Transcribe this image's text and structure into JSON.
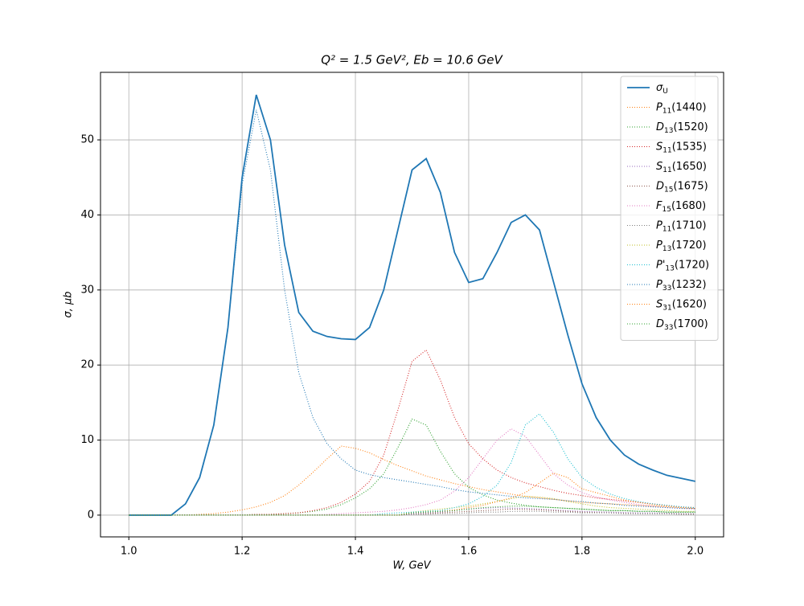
{
  "chart_data": {
    "type": "line",
    "title": "Q² = 1.5 GeV²,  Eb = 10.6 GeV",
    "x_label": "W, GeV",
    "y_label": "σ, μb",
    "xlim": [
      0.95,
      2.05
    ],
    "ylim": [
      -2.9,
      59.0
    ],
    "xticks": [
      {
        "value": 1.0,
        "label": "1.0"
      },
      1.2,
      1.4,
      1.6,
      1.8,
      {
        "value": 2.0,
        "label": "2.0"
      }
    ],
    "yticks": [
      0,
      10,
      20,
      30,
      40,
      50
    ],
    "grid": true,
    "legend": "upper right",
    "x": [
      1.0,
      1.025,
      1.05,
      1.075,
      1.1,
      1.125,
      1.15,
      1.175,
      1.2,
      1.225,
      1.25,
      1.275,
      1.3,
      1.325,
      1.35,
      1.375,
      1.4,
      1.425,
      1.45,
      1.475,
      1.5,
      1.525,
      1.55,
      1.575,
      1.6,
      1.625,
      1.65,
      1.675,
      1.7,
      1.725,
      1.75,
      1.775,
      1.8,
      1.825,
      1.85,
      1.875,
      1.9,
      1.925,
      1.95,
      1.975,
      2.0
    ],
    "series": [
      {
        "name": "σU",
        "color": "#1f77b4",
        "style": "solid",
        "values": [
          0,
          0,
          0,
          0,
          1.5,
          5,
          12,
          25,
          45,
          56,
          50,
          36,
          27,
          24.5,
          23.8,
          23.5,
          23.4,
          25,
          30,
          38,
          46,
          47.5,
          43,
          35,
          31,
          31.5,
          35,
          39,
          40,
          38,
          31,
          24,
          17.5,
          13,
          10,
          8,
          6.8,
          6,
          5.3,
          4.9,
          4.5
        ]
      },
      {
        "name": "P11(1440)",
        "color": "#ff7f0e",
        "style": "dotted",
        "values": [
          0,
          0,
          0,
          0,
          0,
          0.1,
          0.2,
          0.4,
          0.7,
          1.1,
          1.7,
          2.6,
          4,
          5.7,
          7.5,
          9.2,
          8.9,
          8.3,
          7.4,
          6.6,
          5.9,
          5.2,
          4.7,
          4.2,
          3.8,
          3.4,
          3.1,
          2.8,
          2.5,
          2.3,
          2.1,
          1.9,
          1.7,
          1.6,
          1.5,
          1.4,
          1.3,
          1.2,
          1.1,
          1.0,
          0.9
        ]
      },
      {
        "name": "D13(1520)",
        "color": "#2ca02c",
        "style": "dotted",
        "values": [
          0,
          0,
          0,
          0,
          0,
          0,
          0,
          0,
          0,
          0.1,
          0.1,
          0.2,
          0.3,
          0.5,
          0.8,
          1.4,
          2.3,
          3.5,
          5.5,
          9,
          12.8,
          12,
          8.5,
          5.5,
          3.7,
          2.7,
          2,
          1.6,
          1.3,
          1.1,
          1,
          0.9,
          0.8,
          0.7,
          0.6,
          0.6,
          0.5,
          0.5,
          0.4,
          0.4,
          0.4
        ]
      },
      {
        "name": "S11(1535)",
        "color": "#d62728",
        "style": "dotted",
        "values": [
          0,
          0,
          0,
          0,
          0,
          0,
          0,
          0,
          0,
          0.1,
          0.1,
          0.2,
          0.3,
          0.6,
          1,
          1.7,
          2.8,
          4.5,
          8,
          14,
          20.5,
          22,
          18,
          13,
          9.5,
          7.5,
          6,
          5,
          4.3,
          3.8,
          3.3,
          2.9,
          2.6,
          2.3,
          2.1,
          1.9,
          1.7,
          1.5,
          1.3,
          1.1,
          1.0
        ]
      },
      {
        "name": "S11(1650)",
        "color": "#9467bd",
        "style": "dotted",
        "values": [
          0,
          0,
          0,
          0,
          0,
          0,
          0,
          0,
          0,
          0,
          0,
          0,
          0,
          0,
          0,
          0,
          0,
          0,
          0,
          0,
          0.2,
          0.3,
          0.4,
          0.6,
          0.8,
          0.9,
          1,
          0.95,
          0.9,
          0.8,
          0.7,
          0.6,
          0.5,
          0.45,
          0.4,
          0.35,
          0.3,
          0.3,
          0.25,
          0.2,
          0.2
        ]
      },
      {
        "name": "D15(1675)",
        "color": "#8c564b",
        "style": "dotted",
        "values": [
          0,
          0,
          0,
          0,
          0,
          0,
          0,
          0,
          0,
          0,
          0,
          0,
          0,
          0,
          0,
          0,
          0,
          0,
          0,
          0,
          0.1,
          0.2,
          0.3,
          0.4,
          0.5,
          0.6,
          0.7,
          0.8,
          0.75,
          0.7,
          0.6,
          0.5,
          0.4,
          0.35,
          0.3,
          0.25,
          0.2,
          0.2,
          0.2,
          0.15,
          0.15
        ]
      },
      {
        "name": "F15(1680)",
        "color": "#e377c2",
        "style": "dotted",
        "values": [
          0,
          0,
          0,
          0,
          0,
          0,
          0,
          0,
          0,
          0,
          0,
          0,
          0,
          0,
          0.1,
          0.2,
          0.3,
          0.4,
          0.5,
          0.7,
          1,
          1.4,
          2,
          3.2,
          5,
          7.5,
          10,
          11.5,
          10.5,
          8,
          5.5,
          4,
          3,
          2.4,
          2,
          1.7,
          1.4,
          1.2,
          1,
          0.9,
          0.8
        ]
      },
      {
        "name": "P11(1710)",
        "color": "#7f7f7f",
        "style": "dotted",
        "values": [
          0,
          0,
          0,
          0,
          0,
          0,
          0,
          0,
          0,
          0,
          0,
          0,
          0,
          0,
          0,
          0,
          0,
          0,
          0,
          0,
          0.1,
          0.1,
          0.2,
          0.2,
          0.3,
          0.4,
          0.4,
          0.5,
          0.5,
          0.5,
          0.4,
          0.4,
          0.3,
          0.3,
          0.3,
          0.2,
          0.2,
          0.2,
          0.2,
          0.1,
          0.1
        ]
      },
      {
        "name": "P13(1720)",
        "color": "#bcbd22",
        "style": "dotted",
        "values": [
          0,
          0,
          0,
          0,
          0,
          0,
          0,
          0,
          0,
          0,
          0,
          0,
          0,
          0,
          0,
          0,
          0,
          0,
          0,
          0,
          0.4,
          0.6,
          0.8,
          1,
          1.2,
          1.5,
          1.8,
          2.2,
          2.5,
          2.4,
          2.2,
          1.8,
          1.5,
          1.2,
          1,
          0.9,
          0.8,
          0.7,
          0.6,
          0.5,
          0.5
        ]
      },
      {
        "name": "P'13(1720)",
        "color": "#17becf",
        "style": "dotted",
        "values": [
          0,
          0,
          0,
          0,
          0,
          0,
          0,
          0,
          0,
          0,
          0,
          0,
          0,
          0,
          0,
          0,
          0,
          0,
          0.2,
          0.3,
          0.4,
          0.5,
          0.6,
          1,
          1.5,
          2.5,
          4,
          7,
          12,
          13.5,
          11,
          7.5,
          5,
          3.7,
          2.8,
          2.2,
          1.8,
          1.5,
          1.3,
          1.1,
          1.0
        ]
      },
      {
        "name": "P33(1232)",
        "color": "#1f77b4",
        "style": "dotted",
        "values": [
          0,
          0,
          0,
          0,
          1.5,
          5,
          12,
          25,
          44,
          54,
          46,
          30,
          19,
          13,
          9.5,
          7.5,
          6,
          5.4,
          5,
          4.7,
          4.4,
          4.1,
          3.8,
          3.4,
          3.1,
          2.9,
          2.7,
          2.5,
          2.3,
          2.2,
          2.1,
          1.9,
          1.8,
          1.6,
          1.5,
          1.3,
          1.2,
          1.1,
          1.0,
          0.9,
          0.9
        ]
      },
      {
        "name": "S31(1620)",
        "color": "#ff7f0e",
        "style": "dotted",
        "values": [
          0,
          0,
          0,
          0,
          0,
          0,
          0,
          0,
          0,
          0,
          0,
          0,
          0,
          0,
          0,
          0,
          0,
          0,
          0,
          0,
          0.3,
          0.4,
          0.5,
          0.7,
          1,
          1.3,
          1.8,
          2.3,
          3,
          4.3,
          5.6,
          5,
          3.5,
          3,
          2.5,
          2,
          1.7,
          1.4,
          1.2,
          1,
          0.9
        ]
      },
      {
        "name": "D33(1700)",
        "color": "#2ca02c",
        "style": "dotted",
        "values": [
          0,
          0,
          0,
          0,
          0,
          0,
          0,
          0,
          0,
          0,
          0,
          0,
          0,
          0,
          0,
          0,
          0,
          0,
          0,
          0,
          0.3,
          0.4,
          0.5,
          0.6,
          0.8,
          1,
          1.1,
          1.2,
          1.2,
          1.1,
          1,
          0.9,
          0.8,
          0.7,
          0.6,
          0.6,
          0.5,
          0.5,
          0.4,
          0.4,
          0.4
        ]
      }
    ]
  }
}
